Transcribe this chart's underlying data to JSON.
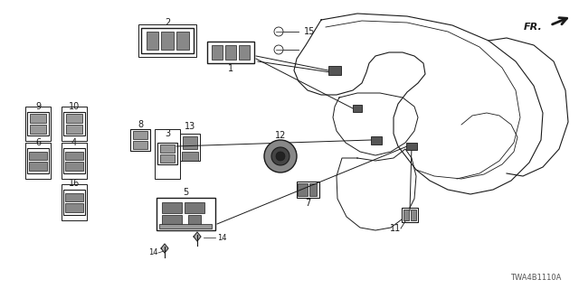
{
  "bg_color": "#ffffff",
  "lc": "#1a1a1a",
  "tc": "#1a1a1a",
  "diagram_code": "TWA4B1110A",
  "figsize": [
    6.4,
    3.2
  ],
  "dpi": 100
}
